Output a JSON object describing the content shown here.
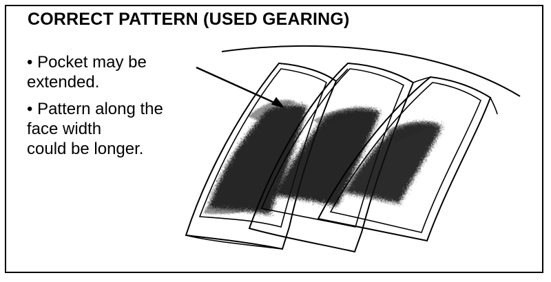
{
  "title": "CORRECT PATTERN (USED GEARING)",
  "notes": [
    {
      "lines": [
        "• Pocket may be",
        "extended."
      ]
    },
    {
      "lines": [
        "• Pattern along the",
        "face width",
        "could be longer."
      ]
    }
  ],
  "diagram": {
    "subject": "gear teeth with contact pattern",
    "tooth_count": 3,
    "line_color": "#000000",
    "pattern_color": "#111111"
  }
}
